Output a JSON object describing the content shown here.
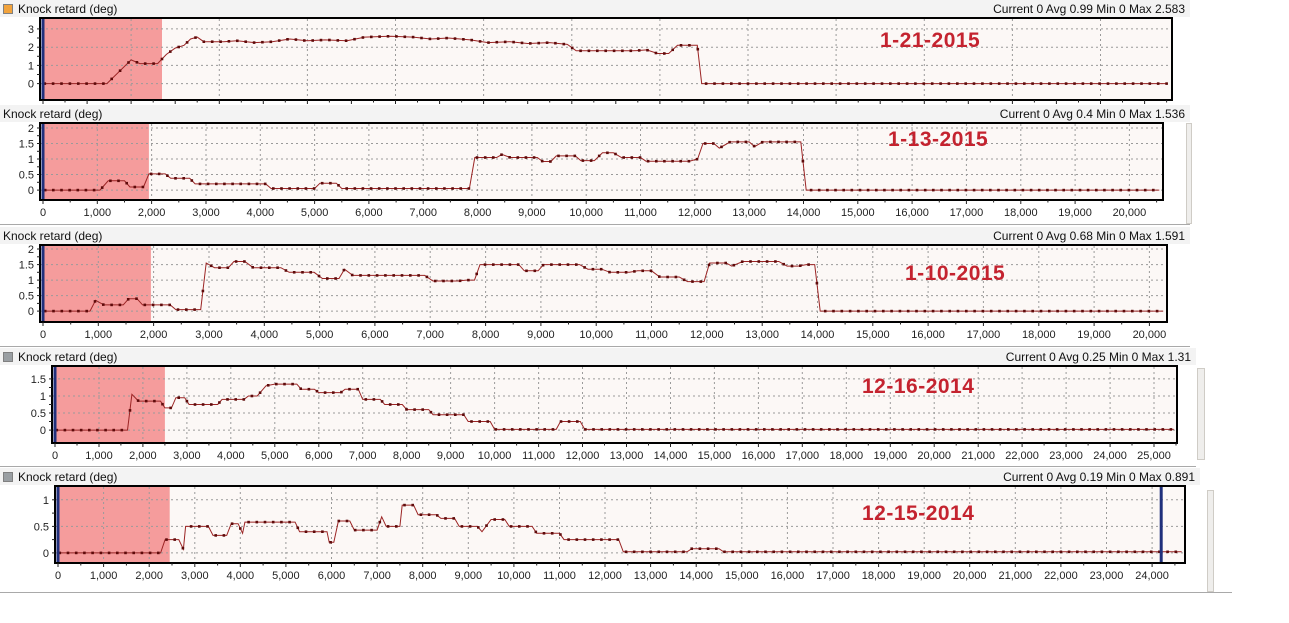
{
  "colors": {
    "line": "#9b2424",
    "dot": "#5e0a0a",
    "grid": "#9a9a9a",
    "plot_bg": "#fcf8f6",
    "plot_border": "#000000",
    "highlight": "#f59c9c",
    "cursor": "#20307c",
    "date_text": "#c4232f",
    "header_bg": "#f3f3f3",
    "swatch_orange": "#f2a33c",
    "swatch_gray": "#9a9fa3",
    "axis_text": "#222222"
  },
  "chart_data": [
    {
      "type": "line",
      "title": "Knock retard (deg)",
      "legend_swatch": "orange",
      "stats_text": "Current 0 Avg 0.99 Min 0 Max 2.583",
      "stats": {
        "current": 0,
        "avg": 0.99,
        "min": 0,
        "max": 2.583
      },
      "date_annotation": "1-21-2015",
      "xlabel": "",
      "ylabel": "",
      "xlim": [
        0,
        25600
      ],
      "ylim": [
        -0.9,
        3.6
      ],
      "yticks": [
        0,
        1,
        2,
        3
      ],
      "x_grid_interval": 2000,
      "x_tick_interval": 500,
      "x_label_interval": 1000,
      "show_x_labels": false,
      "highlight_region": {
        "x0": 0,
        "x1": 2700
      },
      "cursors": [
        0
      ],
      "dot_spacing": 190,
      "points": [
        [
          0,
          0
        ],
        [
          1450,
          0
        ],
        [
          2000,
          1.3
        ],
        [
          2200,
          1.1
        ],
        [
          2600,
          1.1
        ],
        [
          2800,
          1.6
        ],
        [
          3000,
          1.95
        ],
        [
          3200,
          2.1
        ],
        [
          3350,
          2.45
        ],
        [
          3500,
          2.55
        ],
        [
          3650,
          2.3
        ],
        [
          4100,
          2.3
        ],
        [
          4400,
          2.35
        ],
        [
          4800,
          2.25
        ],
        [
          5200,
          2.3
        ],
        [
          5600,
          2.45
        ],
        [
          6000,
          2.35
        ],
        [
          6400,
          2.4
        ],
        [
          6900,
          2.35
        ],
        [
          7300,
          2.55
        ],
        [
          7900,
          2.6
        ],
        [
          8400,
          2.55
        ],
        [
          8800,
          2.45
        ],
        [
          9200,
          2.5
        ],
        [
          9700,
          2.4
        ],
        [
          10100,
          2.25
        ],
        [
          10600,
          2.3
        ],
        [
          11000,
          2.2
        ],
        [
          11500,
          2.25
        ],
        [
          11900,
          2.15
        ],
        [
          12100,
          1.8
        ],
        [
          13400,
          1.8
        ],
        [
          13700,
          1.85
        ],
        [
          13950,
          1.65
        ],
        [
          14200,
          1.65
        ],
        [
          14400,
          2.1
        ],
        [
          14850,
          2.1
        ],
        [
          14950,
          0
        ],
        [
          25500,
          0
        ]
      ]
    },
    {
      "type": "line",
      "title": "Knock retard (deg)",
      "legend_swatch": "none",
      "stats_text": "Current 0 Avg 0.4 Min 0 Max 1.536",
      "stats": {
        "current": 0,
        "avg": 0.4,
        "min": 0,
        "max": 1.536
      },
      "date_annotation": "1-13-2015",
      "xlabel": "",
      "ylabel": "",
      "xlim": [
        0,
        20600
      ],
      "ylim": [
        -0.32,
        2.16
      ],
      "yticks": [
        0,
        0.5,
        1,
        1.5,
        2
      ],
      "x_grid_interval": 1000,
      "x_tick_interval": 500,
      "x_label_interval": 1000,
      "show_x_labels": true,
      "highlight_region": {
        "x0": 0,
        "x1": 1950
      },
      "cursors": [
        0
      ],
      "dot_spacing": 150,
      "points": [
        [
          0,
          0
        ],
        [
          1050,
          0
        ],
        [
          1200,
          0.3
        ],
        [
          1500,
          0.3
        ],
        [
          1600,
          0.1
        ],
        [
          1850,
          0.1
        ],
        [
          1950,
          0.52
        ],
        [
          2250,
          0.52
        ],
        [
          2350,
          0.38
        ],
        [
          2700,
          0.38
        ],
        [
          2800,
          0.2
        ],
        [
          4100,
          0.2
        ],
        [
          4200,
          0.05
        ],
        [
          5000,
          0.05
        ],
        [
          5100,
          0.22
        ],
        [
          5400,
          0.22
        ],
        [
          5500,
          0.05
        ],
        [
          7850,
          0.05
        ],
        [
          7950,
          1.05
        ],
        [
          8350,
          1.05
        ],
        [
          8450,
          1.15
        ],
        [
          8600,
          1.05
        ],
        [
          9100,
          1.05
        ],
        [
          9200,
          0.92
        ],
        [
          9350,
          0.92
        ],
        [
          9450,
          1.1
        ],
        [
          9800,
          1.1
        ],
        [
          9900,
          0.95
        ],
        [
          10150,
          0.95
        ],
        [
          10300,
          1.2
        ],
        [
          10500,
          1.2
        ],
        [
          10650,
          1.05
        ],
        [
          11000,
          1.05
        ],
        [
          11100,
          0.93
        ],
        [
          11900,
          0.93
        ],
        [
          12050,
          1.0
        ],
        [
          12150,
          1.5
        ],
        [
          12350,
          1.5
        ],
        [
          12450,
          1.35
        ],
        [
          12650,
          1.55
        ],
        [
          13000,
          1.55
        ],
        [
          13100,
          1.4
        ],
        [
          13250,
          1.55
        ],
        [
          13950,
          1.55
        ],
        [
          14050,
          0
        ],
        [
          20550,
          0
        ]
      ]
    },
    {
      "type": "line",
      "title": "Knock retard (deg)",
      "legend_swatch": "none",
      "stats_text": "Current 0 Avg 0.68 Min 0 Max 1.591",
      "stats": {
        "current": 0,
        "avg": 0.68,
        "min": 0,
        "max": 1.591
      },
      "date_annotation": "1-10-2015",
      "xlabel": "",
      "ylabel": "",
      "xlim": [
        0,
        20300
      ],
      "ylim": [
        -0.35,
        2.13
      ],
      "yticks": [
        0,
        0.5,
        1,
        1.5,
        2
      ],
      "x_grid_interval": 1000,
      "x_tick_interval": 500,
      "x_label_interval": 1000,
      "show_x_labels": true,
      "highlight_region": {
        "x0": 0,
        "x1": 1950
      },
      "cursors": [
        0
      ],
      "dot_spacing": 150,
      "points": [
        [
          0,
          0
        ],
        [
          850,
          0
        ],
        [
          950,
          0.35
        ],
        [
          1100,
          0.2
        ],
        [
          1450,
          0.2
        ],
        [
          1550,
          0.4
        ],
        [
          1700,
          0.4
        ],
        [
          1800,
          0.2
        ],
        [
          2300,
          0.2
        ],
        [
          2400,
          0.05
        ],
        [
          2850,
          0.05
        ],
        [
          2950,
          1.55
        ],
        [
          3100,
          1.4
        ],
        [
          3350,
          1.4
        ],
        [
          3450,
          1.6
        ],
        [
          3650,
          1.6
        ],
        [
          3800,
          1.4
        ],
        [
          4300,
          1.4
        ],
        [
          4450,
          1.25
        ],
        [
          4900,
          1.25
        ],
        [
          5050,
          1.05
        ],
        [
          5350,
          1.05
        ],
        [
          5450,
          1.35
        ],
        [
          5600,
          1.15
        ],
        [
          6900,
          1.15
        ],
        [
          7050,
          0.97
        ],
        [
          7500,
          0.97
        ],
        [
          7650,
          1.0
        ],
        [
          7800,
          1.0
        ],
        [
          7900,
          1.5
        ],
        [
          8600,
          1.5
        ],
        [
          8700,
          1.3
        ],
        [
          8950,
          1.3
        ],
        [
          9050,
          1.5
        ],
        [
          9700,
          1.5
        ],
        [
          9850,
          1.35
        ],
        [
          10100,
          1.35
        ],
        [
          10250,
          1.25
        ],
        [
          10600,
          1.25
        ],
        [
          10750,
          1.3
        ],
        [
          11000,
          1.3
        ],
        [
          11150,
          1.1
        ],
        [
          11500,
          1.1
        ],
        [
          11650,
          0.95
        ],
        [
          11950,
          0.95
        ],
        [
          12050,
          1.55
        ],
        [
          12350,
          1.55
        ],
        [
          12450,
          1.45
        ],
        [
          12650,
          1.6
        ],
        [
          13300,
          1.6
        ],
        [
          13450,
          1.45
        ],
        [
          13650,
          1.45
        ],
        [
          13800,
          1.5
        ],
        [
          13950,
          1.5
        ],
        [
          14050,
          0
        ],
        [
          20250,
          0
        ]
      ]
    },
    {
      "type": "line",
      "title": "Knock retard (deg)",
      "legend_swatch": "gray",
      "stats_text": "Current 0 Avg 0.25 Min 0 Max 1.31",
      "stats": {
        "current": 0,
        "avg": 0.25,
        "min": 0,
        "max": 1.31
      },
      "date_annotation": "12-16-2014",
      "xlabel": "",
      "ylabel": "",
      "xlim": [
        0,
        25500
      ],
      "ylim": [
        -0.38,
        1.88
      ],
      "yticks": [
        0,
        0.5,
        1,
        1.5
      ],
      "x_grid_interval": 1000,
      "x_tick_interval": 500,
      "x_label_interval": 1000,
      "show_x_labels": true,
      "highlight_region": {
        "x0": 0,
        "x1": 2500
      },
      "cursors": [
        0
      ],
      "dot_spacing": 185,
      "points": [
        [
          0,
          0
        ],
        [
          1650,
          0
        ],
        [
          1750,
          1.05
        ],
        [
          1900,
          0.85
        ],
        [
          2400,
          0.85
        ],
        [
          2500,
          0.65
        ],
        [
          2650,
          0.65
        ],
        [
          2750,
          0.95
        ],
        [
          2950,
          0.95
        ],
        [
          3050,
          0.75
        ],
        [
          3700,
          0.75
        ],
        [
          3800,
          0.9
        ],
        [
          4300,
          0.9
        ],
        [
          4400,
          1.0
        ],
        [
          4600,
          1.0
        ],
        [
          4800,
          1.3
        ],
        [
          5000,
          1.35
        ],
        [
          5500,
          1.35
        ],
        [
          5600,
          1.2
        ],
        [
          5900,
          1.2
        ],
        [
          6000,
          1.1
        ],
        [
          6500,
          1.1
        ],
        [
          6600,
          1.2
        ],
        [
          6900,
          1.2
        ],
        [
          7000,
          0.9
        ],
        [
          7400,
          0.9
        ],
        [
          7500,
          0.75
        ],
        [
          7900,
          0.75
        ],
        [
          8000,
          0.6
        ],
        [
          8500,
          0.6
        ],
        [
          8600,
          0.45
        ],
        [
          9300,
          0.45
        ],
        [
          9400,
          0.25
        ],
        [
          9900,
          0.25
        ],
        [
          10000,
          0.02
        ],
        [
          11400,
          0.02
        ],
        [
          11500,
          0.25
        ],
        [
          11950,
          0.25
        ],
        [
          12050,
          0.02
        ],
        [
          25450,
          0.02
        ]
      ]
    },
    {
      "type": "line",
      "title": "Knock retard (deg)",
      "legend_swatch": "gray",
      "stats_text": "Current 0 Avg 0.19 Min 0 Max 0.891",
      "stats": {
        "current": 0,
        "avg": 0.19,
        "min": 0,
        "max": 0.891
      },
      "date_annotation": "12-15-2014",
      "xlabel": "",
      "ylabel": "",
      "xlim": [
        0,
        24700
      ],
      "ylim": [
        -0.19,
        1.26
      ],
      "yticks": [
        0,
        0.5,
        1
      ],
      "x_grid_interval": 1000,
      "x_tick_interval": 500,
      "x_label_interval": 1000,
      "show_x_labels": true,
      "highlight_region": {
        "x0": 0,
        "x1": 2450
      },
      "cursors": [
        0,
        24200
      ],
      "dot_spacing": 180,
      "points": [
        [
          0,
          0
        ],
        [
          2250,
          0
        ],
        [
          2350,
          0.25
        ],
        [
          2650,
          0.25
        ],
        [
          2750,
          0.07
        ],
        [
          2800,
          0.5
        ],
        [
          3300,
          0.5
        ],
        [
          3400,
          0.33
        ],
        [
          3700,
          0.33
        ],
        [
          3800,
          0.55
        ],
        [
          3950,
          0.55
        ],
        [
          4050,
          0.37
        ],
        [
          4100,
          0.58
        ],
        [
          5200,
          0.58
        ],
        [
          5300,
          0.4
        ],
        [
          5900,
          0.4
        ],
        [
          5950,
          0.2
        ],
        [
          6050,
          0.2
        ],
        [
          6150,
          0.6
        ],
        [
          6400,
          0.6
        ],
        [
          6500,
          0.43
        ],
        [
          7000,
          0.43
        ],
        [
          7100,
          0.68
        ],
        [
          7200,
          0.5
        ],
        [
          7500,
          0.5
        ],
        [
          7550,
          0.9
        ],
        [
          7800,
          0.9
        ],
        [
          7900,
          0.72
        ],
        [
          8300,
          0.72
        ],
        [
          8400,
          0.65
        ],
        [
          8700,
          0.65
        ],
        [
          8800,
          0.5
        ],
        [
          9200,
          0.5
        ],
        [
          9300,
          0.4
        ],
        [
          9500,
          0.63
        ],
        [
          9800,
          0.63
        ],
        [
          9900,
          0.5
        ],
        [
          10400,
          0.5
        ],
        [
          10500,
          0.37
        ],
        [
          11000,
          0.37
        ],
        [
          11100,
          0.25
        ],
        [
          12300,
          0.25
        ],
        [
          12400,
          0.02
        ],
        [
          13800,
          0.02
        ],
        [
          13900,
          0.08
        ],
        [
          14500,
          0.08
        ],
        [
          14600,
          0.02
        ],
        [
          24650,
          0.02
        ]
      ]
    }
  ]
}
